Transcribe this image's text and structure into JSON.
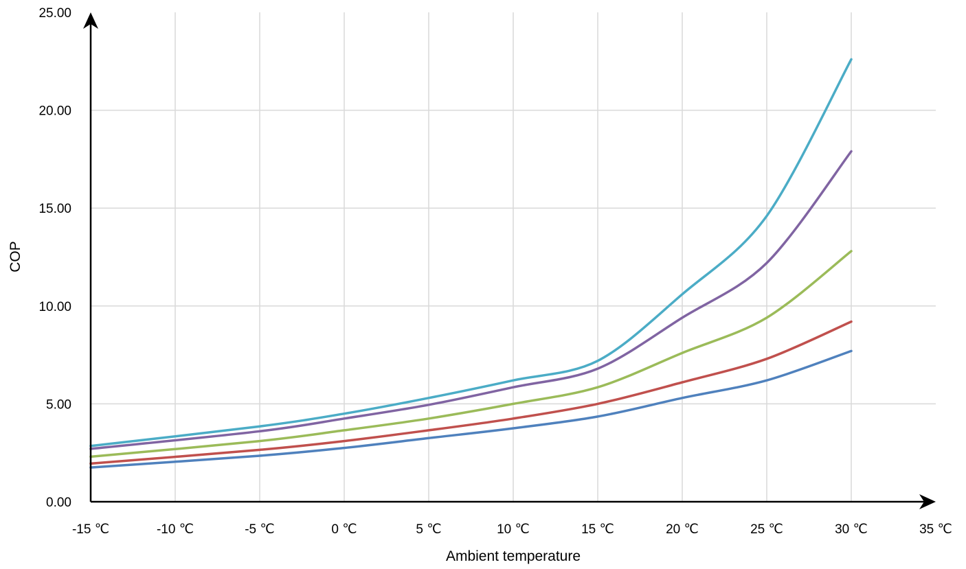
{
  "chart_data": {
    "type": "line",
    "title": "",
    "xlabel": "Ambient temperature",
    "ylabel": "COP",
    "x": [
      -15,
      -10,
      -5,
      0,
      5,
      10,
      15,
      20,
      25,
      30
    ],
    "xlim": [
      -15,
      35
    ],
    "ylim": [
      0,
      25
    ],
    "x_ticks": [
      -15,
      -10,
      -5,
      0,
      5,
      10,
      15,
      20,
      25,
      30,
      35
    ],
    "x_tick_labels": [
      "-15 ℃",
      "-10 ℃",
      "-5 ℃",
      "0 ℃",
      "5 ℃",
      "10 ℃",
      "15 ℃",
      "20 ℃",
      "25 ℃",
      "30 ℃",
      "35 ℃"
    ],
    "y_ticks": [
      0,
      5,
      10,
      15,
      20,
      25
    ],
    "y_tick_labels": [
      "0.00",
      "5.00",
      "10.00",
      "15.00",
      "20.00",
      "25.00"
    ],
    "grid": true,
    "legend": "none",
    "series": [
      {
        "color": "#4f81bd",
        "values": [
          1.75,
          2.35,
          2.75,
          3.25,
          3.75,
          4.35,
          5.3,
          6.2,
          7.7
        ],
        "x": [
          -15,
          -5,
          0,
          5,
          10,
          15,
          20,
          25,
          30
        ]
      },
      {
        "color": "#c0504d",
        "values": [
          1.95,
          2.65,
          3.1,
          3.65,
          4.25,
          5.0,
          6.1,
          7.3,
          9.2
        ],
        "x": [
          -15,
          -5,
          0,
          5,
          10,
          15,
          20,
          25,
          30
        ]
      },
      {
        "color": "#9bbb59",
        "values": [
          2.3,
          3.1,
          3.65,
          4.25,
          5.0,
          5.85,
          7.6,
          9.4,
          12.8
        ],
        "x": [
          -15,
          -5,
          0,
          5,
          10,
          15,
          20,
          25,
          30
        ]
      },
      {
        "color": "#8064a2",
        "values": [
          2.7,
          3.6,
          4.25,
          4.95,
          5.85,
          6.8,
          9.4,
          12.2,
          17.9
        ],
        "x": [
          -15,
          -5,
          0,
          5,
          10,
          15,
          20,
          25,
          30
        ]
      },
      {
        "color": "#4bacc6",
        "values": [
          2.85,
          3.85,
          4.5,
          5.3,
          6.2,
          7.2,
          10.6,
          14.6,
          22.6
        ],
        "x": [
          -15,
          -5,
          0,
          5,
          10,
          15,
          20,
          25,
          30
        ]
      }
    ]
  }
}
